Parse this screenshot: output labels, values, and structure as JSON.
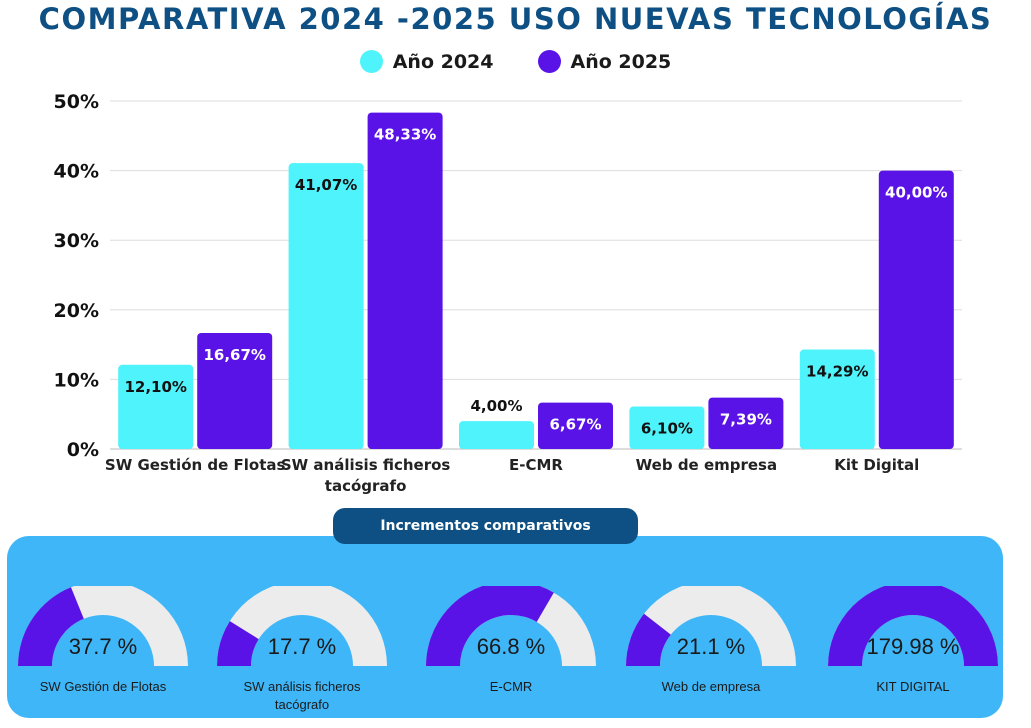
{
  "title": "COMPARATIVA 2024 -2025 USO NUEVAS TECNOLOGÍAS",
  "colors": {
    "y2024": "#4ff3fb",
    "y2025": "#5a13e6",
    "gauge_bg": "#ececec"
  },
  "chart_data": {
    "type": "bar",
    "title": "COMPARATIVA 2024 -2025 USO NUEVAS TECNOLOGÍAS",
    "categories": [
      [
        "SW Gestión de Flotas"
      ],
      [
        "SW análisis ficheros",
        "tacógrafo"
      ],
      [
        "E-CMR"
      ],
      [
        "Web de empresa"
      ],
      [
        "Kit Digital"
      ]
    ],
    "series": [
      {
        "name": "Año 2024",
        "values": [
          12.1,
          41.07,
          4.0,
          6.1,
          14.29
        ],
        "labels": [
          "12,10%",
          "41,07%",
          "4,00%",
          "6,10%",
          "14,29%"
        ]
      },
      {
        "name": "Año 2025",
        "values": [
          16.67,
          48.33,
          6.67,
          7.39,
          40.0
        ],
        "labels": [
          "16,67%",
          "48,33%",
          "6,67%",
          "7,39%",
          "40,00%"
        ]
      }
    ],
    "yticks": [
      "0%",
      "10%",
      "20%",
      "30%",
      "40%",
      "50%"
    ],
    "ylim": [
      0,
      50
    ],
    "xlabel": "",
    "ylabel": "",
    "legend": "top-center",
    "grid": true
  },
  "increments": {
    "title": "Incrementos comparativos",
    "items": [
      {
        "label": "SW Gestión de Flotas",
        "value_text": "37.7 %",
        "value": 37.7
      },
      {
        "label": "SW análisis ficheros tacógrafo",
        "value_text": "17.7 %",
        "value": 17.7
      },
      {
        "label": "E-CMR",
        "value_text": "66.8 %",
        "value": 66.8
      },
      {
        "label": "Web de empresa",
        "value_text": "21.1 %",
        "value": 21.1
      },
      {
        "label": "KIT DIGITAL",
        "value_text": "179.98 %",
        "value": 179.98
      }
    ]
  }
}
